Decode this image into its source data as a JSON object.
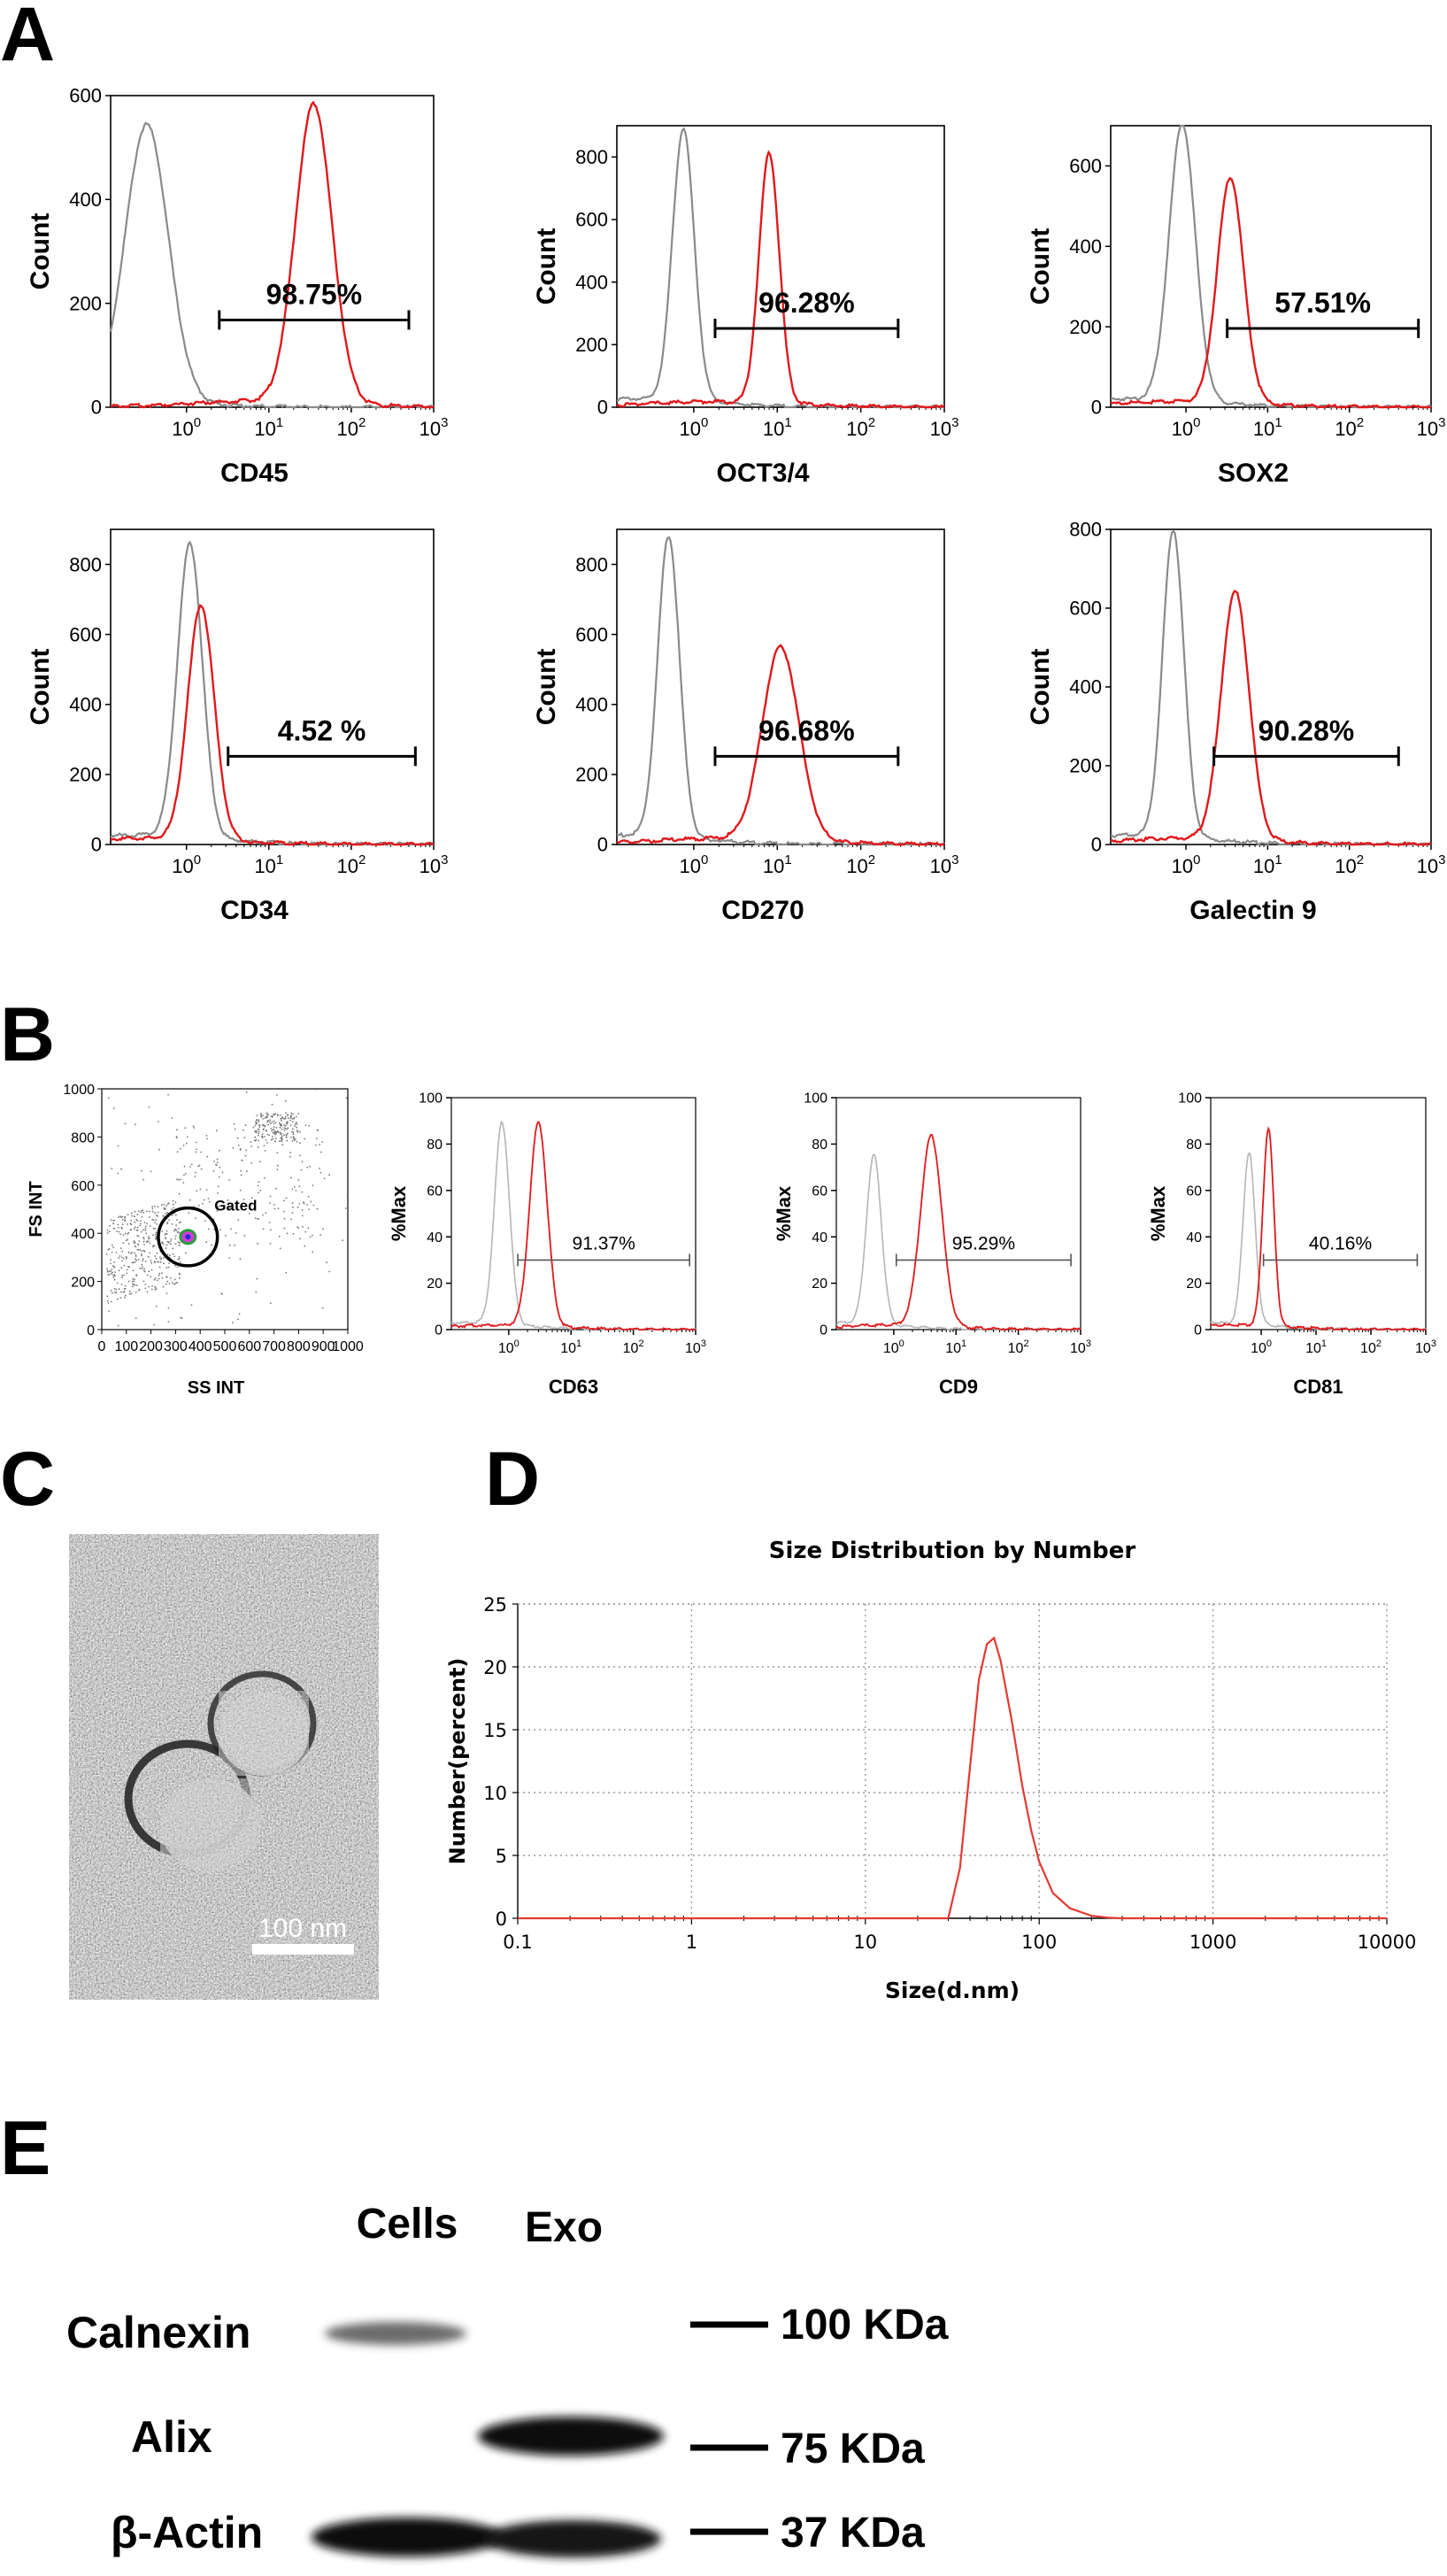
{
  "panels": {
    "A": "A",
    "B": "B",
    "C": "C",
    "D": "D",
    "E": "E"
  },
  "chart_data": [
    {
      "panel": "A",
      "type": "area",
      "ylabel": "Count",
      "xlabel": "CD45",
      "ylim": [
        0,
        600
      ],
      "yticks": [
        0,
        200,
        400,
        600
      ],
      "xscale": "log",
      "xlim": [
        0.12,
        1000
      ],
      "xticks": [
        "10^0",
        "10^1",
        "10^2",
        "10^3"
      ],
      "percentage": "98.75%",
      "gate": [
        2.5,
        500
      ],
      "control_peak": {
        "x": 0.33,
        "y": 530,
        "w": 0.26
      },
      "stained_peak": {
        "x": 35,
        "y": 575,
        "w": 0.22
      }
    },
    {
      "panel": "A",
      "type": "area",
      "ylabel": "Count",
      "xlabel": "OCT3/4",
      "ylim": [
        0,
        900
      ],
      "yticks": [
        0,
        200,
        400,
        600,
        800
      ],
      "xscale": "log",
      "xlim": [
        0.12,
        1000
      ],
      "xticks": [
        "10^0",
        "10^1",
        "10^2",
        "10^3"
      ],
      "percentage": "96.28%",
      "gate": [
        1.8,
        280
      ],
      "control_peak": {
        "x": 0.75,
        "y": 870,
        "w": 0.13
      },
      "stained_peak": {
        "x": 8,
        "y": 800,
        "w": 0.12
      }
    },
    {
      "panel": "A",
      "type": "area",
      "ylabel": "Count",
      "xlabel": "SOX2",
      "ylim": [
        0,
        700
      ],
      "yticks": [
        0,
        200,
        400,
        600
      ],
      "xscale": "log",
      "xlim": [
        0.12,
        1000
      ],
      "xticks": [
        "10^0",
        "10^1",
        "10^2",
        "10^3"
      ],
      "percentage": "57.51%",
      "gate": [
        3.2,
        700
      ],
      "control_peak": {
        "x": 0.9,
        "y": 690,
        "w": 0.16
      },
      "stained_peak": {
        "x": 3.5,
        "y": 560,
        "w": 0.16
      }
    },
    {
      "panel": "A",
      "type": "area",
      "ylabel": "Count",
      "xlabel": "CD34",
      "ylim": [
        0,
        900
      ],
      "yticks": [
        0,
        200,
        400,
        600,
        800
      ],
      "xscale": "log",
      "xlim": [
        0.12,
        1000
      ],
      "xticks": [
        "10^0",
        "10^1",
        "10^2",
        "10^3"
      ],
      "percentage": "4.52 %",
      "gate": [
        3.2,
        600
      ],
      "control_peak": {
        "x": 1.1,
        "y": 840,
        "w": 0.15
      },
      "stained_peak": {
        "x": 1.5,
        "y": 670,
        "w": 0.16
      }
    },
    {
      "panel": "A",
      "type": "area",
      "ylabel": "Count",
      "xlabel": "CD270",
      "ylim": [
        0,
        900
      ],
      "yticks": [
        0,
        200,
        400,
        600,
        800
      ],
      "xscale": "log",
      "xlim": [
        0.12,
        1000
      ],
      "xticks": [
        "10^0",
        "10^1",
        "10^2",
        "10^3"
      ],
      "percentage": "96.68%",
      "gate": [
        1.8,
        280
      ],
      "control_peak": {
        "x": 0.5,
        "y": 860,
        "w": 0.13
      },
      "stained_peak": {
        "x": 11,
        "y": 550,
        "w": 0.22
      }
    },
    {
      "panel": "A",
      "type": "area",
      "ylabel": "Count",
      "xlabel": "Galectin 9",
      "ylim": [
        0,
        800
      ],
      "yticks": [
        0,
        200,
        400,
        600,
        800
      ],
      "xscale": "log",
      "xlim": [
        0.12,
        1000
      ],
      "xticks": [
        "10^0",
        "10^1",
        "10^2",
        "10^3"
      ],
      "percentage": "90.28%",
      "gate": [
        2.2,
        400
      ],
      "control_peak": {
        "x": 0.7,
        "y": 780,
        "w": 0.13
      },
      "stained_peak": {
        "x": 4,
        "y": 630,
        "w": 0.17
      }
    },
    {
      "panel": "B",
      "type": "scatter",
      "ylabel": "FS INT",
      "xlabel": "SS INT",
      "xlim": [
        0,
        1000
      ],
      "ylim": [
        0,
        1000
      ],
      "xticks": [
        0,
        100,
        200,
        300,
        400,
        500,
        600,
        700,
        800,
        900,
        1000
      ],
      "yticks": [
        0,
        200,
        400,
        600,
        800,
        1000
      ],
      "gate_label": "Gated",
      "gate_center": [
        350,
        385
      ],
      "gate_radius": [
        120,
        120
      ],
      "clusters": [
        {
          "x": 350,
          "y": 385
        },
        {
          "x": 730,
          "y": 860
        }
      ]
    },
    {
      "panel": "B",
      "type": "area",
      "ylabel": "%Max",
      "xlabel": "CD63",
      "ylim": [
        0,
        100
      ],
      "yticks": [
        0,
        20,
        40,
        60,
        80,
        100
      ],
      "xscale": "log",
      "xlim": [
        0.12,
        1000
      ],
      "xticks": [
        "10^0",
        "10^1",
        "10^2",
        "10^3"
      ],
      "percentage": "91.37%",
      "gate": [
        1.4,
        800
      ],
      "control_peak": {
        "x": 0.78,
        "y": 87,
        "w": 0.12
      },
      "stained_peak": {
        "x": 3.0,
        "y": 88,
        "w": 0.14
      }
    },
    {
      "panel": "B",
      "type": "area",
      "ylabel": "%Max",
      "xlabel": "CD9",
      "ylim": [
        0,
        100
      ],
      "yticks": [
        0,
        20,
        40,
        60,
        80,
        100
      ],
      "xscale": "log",
      "xlim": [
        0.12,
        1000
      ],
      "xticks": [
        "10^0",
        "10^1",
        "10^2",
        "10^3"
      ],
      "percentage": "95.29%",
      "gate": [
        1.1,
        700
      ],
      "control_peak": {
        "x": 0.48,
        "y": 73,
        "w": 0.12
      },
      "stained_peak": {
        "x": 4.0,
        "y": 82,
        "w": 0.17
      }
    },
    {
      "panel": "B",
      "type": "area",
      "ylabel": "%Max",
      "xlabel": "CD81",
      "ylim": [
        0,
        100
      ],
      "yticks": [
        0,
        20,
        40,
        60,
        80,
        100
      ],
      "xscale": "log",
      "xlim": [
        0.12,
        1000
      ],
      "xticks": [
        "10^0",
        "10^1",
        "10^2",
        "10^3"
      ],
      "percentage": "40.16%",
      "gate": [
        1.1,
        700
      ],
      "control_peak": {
        "x": 0.6,
        "y": 74,
        "w": 0.11
      },
      "stained_peak": {
        "x": 1.35,
        "y": 85,
        "w": 0.1
      }
    },
    {
      "panel": "D",
      "type": "line",
      "title": "Size Distribution by Number",
      "xlabel": "Size(d.nm)",
      "ylabel": "Number(percent)",
      "xscale": "log",
      "xlim": [
        0.1,
        10000
      ],
      "xticks": [
        "0.1",
        "1",
        "10",
        "100",
        "1000",
        "10000"
      ],
      "ylim": [
        0,
        25
      ],
      "yticks": [
        "0",
        "5",
        "10",
        "15",
        "20",
        "25"
      ],
      "grid": true,
      "series": [
        {
          "x": [
            30,
            35,
            40,
            45,
            50,
            55,
            60,
            70,
            80,
            90,
            100,
            120,
            150,
            200,
            250,
            300
          ],
          "values": [
            0,
            4,
            12,
            19,
            21.8,
            22.3,
            20.5,
            15.5,
            10.5,
            7,
            4.5,
            2,
            0.8,
            0.2,
            0.05,
            0
          ]
        }
      ]
    }
  ],
  "tem": {
    "scale_label": "100 nm"
  },
  "western_blot": {
    "lanes": [
      "Cells",
      "Exo"
    ],
    "rows": [
      {
        "label": "Calnexin",
        "marker": "100 KDa",
        "bands": [
          0.55,
          0
        ]
      },
      {
        "label": "Alix",
        "marker": "75 KDa",
        "bands": [
          0,
          1
        ]
      },
      {
        "label": "β-Actin",
        "marker": "37 KDa",
        "bands": [
          1,
          1
        ]
      }
    ]
  },
  "colors": {
    "control": "#8a8a8a",
    "control_light": "#b5b5b5",
    "stained": "#e0181c",
    "dls": "#e23a33",
    "grid": "#9a9a9a"
  }
}
